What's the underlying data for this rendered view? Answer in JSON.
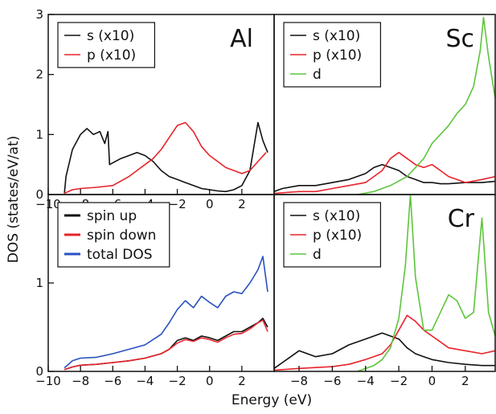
{
  "figure": {
    "xlabel": "Energy (eV)",
    "ylabel": "DOS (states/eV/at)"
  },
  "colors": {
    "black": "#111111",
    "red": "#e8232b",
    "green": "#5cc53b",
    "blue": "#2850c0"
  },
  "chart_data": [
    {
      "type": "line",
      "panel": "top-left",
      "element_label": "Al",
      "xlim": [
        -10,
        4
      ],
      "ylim": [
        0,
        3
      ],
      "xticks": [
        -10,
        -8,
        -6,
        -4,
        -2,
        0,
        2
      ],
      "yticks": [
        0,
        1,
        2,
        3
      ],
      "legend_position": "top-left",
      "series": [
        {
          "name": "s (x10)",
          "color": "black",
          "x": [
            -9,
            -8.9,
            -8.5,
            -8.0,
            -7.6,
            -7.2,
            -6.8,
            -6.5,
            -6.3,
            -6.2,
            -5.5,
            -5.0,
            -4.5,
            -4.0,
            -3.5,
            -3.0,
            -2.5,
            -2.0,
            -1.5,
            -1.0,
            -0.5,
            0.0,
            0.5,
            1.0,
            1.5,
            2.0,
            2.5,
            3.0,
            3.3,
            3.6
          ],
          "y": [
            0.02,
            0.3,
            0.75,
            1.0,
            1.1,
            1.0,
            1.05,
            0.85,
            1.05,
            0.5,
            0.6,
            0.65,
            0.7,
            0.65,
            0.55,
            0.4,
            0.3,
            0.25,
            0.2,
            0.15,
            0.1,
            0.08,
            0.06,
            0.05,
            0.08,
            0.15,
            0.4,
            1.2,
            0.9,
            0.7
          ]
        },
        {
          "name": "p (x10)",
          "color": "red",
          "x": [
            -9,
            -8.5,
            -8.0,
            -7.0,
            -6.0,
            -5.0,
            -4.5,
            -4.0,
            -3.5,
            -3.0,
            -2.5,
            -2.0,
            -1.5,
            -1.0,
            -0.5,
            0.0,
            0.5,
            1.0,
            1.5,
            2.0,
            2.5,
            3.0,
            3.5
          ],
          "y": [
            0.02,
            0.08,
            0.1,
            0.12,
            0.15,
            0.3,
            0.4,
            0.5,
            0.6,
            0.75,
            0.95,
            1.15,
            1.2,
            1.05,
            0.8,
            0.65,
            0.55,
            0.45,
            0.4,
            0.35,
            0.4,
            0.55,
            0.7
          ]
        }
      ]
    },
    {
      "type": "line",
      "panel": "top-right",
      "element_label": "Sc",
      "xlim": [
        -9.5,
        3.8
      ],
      "ylim": [
        0,
        3
      ],
      "legend_position": "top-left",
      "series": [
        {
          "name": "s (x10)",
          "color": "black",
          "x": [
            -9.5,
            -9,
            -8,
            -7,
            -6,
            -5,
            -4,
            -3.5,
            -3,
            -2.5,
            -2,
            -1.5,
            -1,
            -0.5,
            0,
            0.5,
            1,
            2,
            3,
            3.8
          ],
          "y": [
            0.05,
            0.1,
            0.15,
            0.15,
            0.2,
            0.25,
            0.35,
            0.45,
            0.5,
            0.45,
            0.4,
            0.3,
            0.25,
            0.2,
            0.2,
            0.18,
            0.18,
            0.2,
            0.2,
            0.22
          ]
        },
        {
          "name": "p (x10)",
          "color": "red",
          "x": [
            -9.5,
            -8,
            -7,
            -6,
            -5,
            -4,
            -3.5,
            -3,
            -2.5,
            -2,
            -1.5,
            -1,
            -0.5,
            0,
            0.5,
            1,
            1.5,
            2,
            3,
            3.8
          ],
          "y": [
            0.02,
            0.05,
            0.05,
            0.1,
            0.15,
            0.2,
            0.3,
            0.4,
            0.6,
            0.7,
            0.6,
            0.5,
            0.45,
            0.5,
            0.4,
            0.3,
            0.25,
            0.2,
            0.25,
            0.3
          ]
        },
        {
          "name": "d",
          "color": "green",
          "x": [
            -4.5,
            -3.5,
            -2.5,
            -1.5,
            -1,
            -0.5,
            0,
            0.5,
            1,
            1.5,
            2,
            2.5,
            2.9,
            3.1,
            3.4,
            3.8
          ],
          "y": [
            0.0,
            0.05,
            0.15,
            0.3,
            0.45,
            0.6,
            0.85,
            1.0,
            1.15,
            1.35,
            1.5,
            1.8,
            2.4,
            2.95,
            2.3,
            1.6
          ]
        }
      ]
    },
    {
      "type": "line",
      "panel": "bottom-left",
      "xlim": [
        -10,
        4
      ],
      "ylim": [
        0,
        2
      ],
      "xticks": [
        -10,
        -8,
        -6,
        -4,
        -2,
        0,
        2
      ],
      "yticks": [
        0,
        1
      ],
      "legend_position": "top-left",
      "series": [
        {
          "name": "spin up",
          "color": "black",
          "x": [
            -9,
            -8.5,
            -8,
            -7,
            -6,
            -5,
            -4,
            -3,
            -2.5,
            -2,
            -1.5,
            -1,
            -0.5,
            0,
            0.5,
            1,
            1.5,
            2,
            2.5,
            3,
            3.3,
            3.6
          ],
          "y": [
            0.02,
            0.05,
            0.07,
            0.08,
            0.1,
            0.12,
            0.15,
            0.2,
            0.25,
            0.35,
            0.38,
            0.35,
            0.4,
            0.38,
            0.35,
            0.4,
            0.45,
            0.45,
            0.5,
            0.55,
            0.6,
            0.5
          ]
        },
        {
          "name": "spin down",
          "color": "red",
          "x": [
            -9,
            -8.5,
            -8,
            -7,
            -6,
            -5,
            -4,
            -3,
            -2.5,
            -2,
            -1.5,
            -1,
            -0.5,
            0,
            0.5,
            1,
            1.5,
            2,
            2.5,
            3,
            3.3,
            3.6
          ],
          "y": [
            0.02,
            0.05,
            0.07,
            0.08,
            0.1,
            0.12,
            0.15,
            0.2,
            0.25,
            0.32,
            0.36,
            0.34,
            0.38,
            0.36,
            0.33,
            0.38,
            0.42,
            0.43,
            0.48,
            0.55,
            0.58,
            0.45
          ]
        },
        {
          "name": "total DOS",
          "color": "blue",
          "x": [
            -9,
            -8.5,
            -8,
            -7,
            -6,
            -5,
            -4,
            -3,
            -2.5,
            -2,
            -1.5,
            -1,
            -0.5,
            0,
            0.5,
            1,
            1.5,
            2,
            2.5,
            3,
            3.3,
            3.6
          ],
          "y": [
            0.04,
            0.12,
            0.15,
            0.16,
            0.2,
            0.25,
            0.3,
            0.42,
            0.55,
            0.7,
            0.8,
            0.72,
            0.85,
            0.78,
            0.72,
            0.85,
            0.9,
            0.88,
            1.0,
            1.15,
            1.3,
            0.9
          ]
        }
      ]
    },
    {
      "type": "line",
      "panel": "bottom-right",
      "element_label": "Cr",
      "xlim": [
        -9.5,
        3.8
      ],
      "ylim": [
        0,
        3
      ],
      "xticks": [
        -8,
        -6,
        -4,
        -2,
        0,
        2
      ],
      "legend_position": "top-left",
      "series": [
        {
          "name": "s (x10)",
          "color": "black",
          "x": [
            -9.5,
            -9,
            -8.5,
            -8,
            -7,
            -6,
            -5,
            -4,
            -3.5,
            -3,
            -2.5,
            -2,
            -1.5,
            -1,
            -0.5,
            0,
            1,
            2,
            3,
            3.8
          ],
          "y": [
            0.05,
            0.15,
            0.25,
            0.35,
            0.25,
            0.3,
            0.45,
            0.55,
            0.6,
            0.65,
            0.6,
            0.55,
            0.4,
            0.3,
            0.25,
            0.2,
            0.15,
            0.12,
            0.1,
            0.1
          ]
        },
        {
          "name": "p (x10)",
          "color": "red",
          "x": [
            -9.5,
            -8,
            -6,
            -5,
            -4,
            -3,
            -2.5,
            -2,
            -1.5,
            -1,
            -0.5,
            0,
            0.5,
            1,
            2,
            3,
            3.8
          ],
          "y": [
            0.02,
            0.05,
            0.08,
            0.12,
            0.2,
            0.3,
            0.45,
            0.7,
            0.95,
            0.85,
            0.7,
            0.6,
            0.5,
            0.4,
            0.35,
            0.3,
            0.35
          ]
        },
        {
          "name": "d",
          "color": "green",
          "x": [
            -4.5,
            -3.5,
            -3,
            -2.5,
            -2,
            -1.6,
            -1.3,
            -1.0,
            -0.5,
            0,
            0.5,
            1,
            1.5,
            2,
            2.5,
            3,
            3.4,
            3.8
          ],
          "y": [
            0.0,
            0.1,
            0.2,
            0.4,
            0.9,
            1.8,
            3.0,
            1.6,
            0.7,
            0.7,
            1.0,
            1.3,
            1.2,
            0.9,
            1.0,
            2.6,
            1.0,
            0.6
          ]
        }
      ]
    }
  ]
}
